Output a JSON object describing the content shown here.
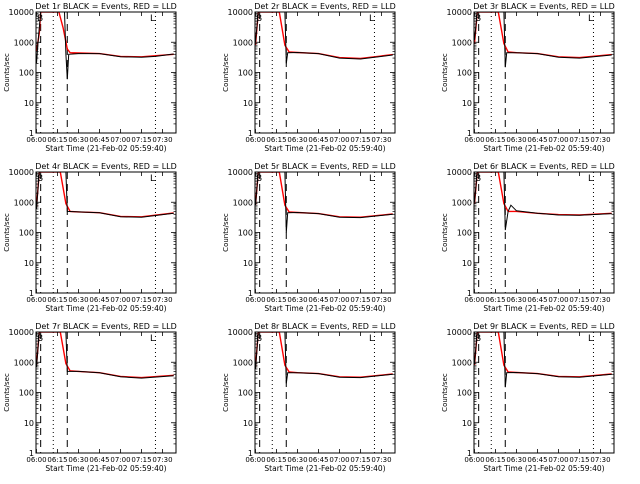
{
  "chart_data": {
    "type": "line",
    "layout": "3x3 grid of panels",
    "y_scale": "log",
    "ylim": [
      1,
      10000
    ],
    "y_ticks": [
      "1",
      "10",
      "100",
      "1000",
      "10000"
    ],
    "ylabel": "Counts/sec",
    "xlabel": "Start Time (21-Feb-02 05:59:40)",
    "x_ticks": [
      "06:00",
      "06:15",
      "06:30",
      "06:45",
      "07:00",
      "07:15",
      "07:30"
    ],
    "xlim": [
      "05:59:40",
      "07:39:40"
    ],
    "colors": {
      "events": "#000000",
      "lld": "#ff0000"
    },
    "corner_markers": {
      "left": "B",
      "right": "L"
    },
    "panels": [
      {
        "title": "Det 1r BLACK = Events, RED = LLD",
        "dashed_x": [
          "06:03",
          "06:22"
        ],
        "dotted_x": [
          "06:12",
          "07:25"
        ],
        "series": [
          {
            "name": "Events",
            "color": "#000000",
            "points": [
              [
                "06:00",
                200
              ],
              [
                "06:01",
                900
              ],
              [
                "06:03",
                10000
              ],
              [
                "06:20",
                10000
              ],
              [
                "06:21",
                400
              ],
              [
                "06:22",
                60
              ],
              [
                "06:23",
                400
              ],
              [
                "06:30",
                420
              ],
              [
                "06:45",
                420
              ],
              [
                "07:00",
                330
              ],
              [
                "07:15",
                320
              ],
              [
                "07:25",
                340
              ],
              [
                "07:38",
                410
              ]
            ]
          },
          {
            "name": "LLD",
            "color": "#ff0000",
            "points": [
              [
                "06:00",
                500
              ],
              [
                "06:02",
                2000
              ],
              [
                "06:03",
                10000
              ],
              [
                "06:16",
                10000
              ],
              [
                "06:19",
                3000
              ],
              [
                "06:22",
                600
              ],
              [
                "06:24",
                450
              ],
              [
                "06:30",
                440
              ],
              [
                "06:45",
                420
              ],
              [
                "07:00",
                340
              ],
              [
                "07:15",
                330
              ],
              [
                "07:38",
                400
              ]
            ]
          }
        ]
      },
      {
        "title": "Det 2r BLACK = Events, RED = LLD",
        "dashed_x": [
          "06:03",
          "06:22"
        ],
        "dotted_x": [
          "06:12",
          "07:25"
        ],
        "series": [
          {
            "name": "Events",
            "color": "#000000",
            "points": [
              [
                "06:00",
                1000
              ],
              [
                "06:02",
                10000
              ],
              [
                "06:21",
                10000
              ],
              [
                "06:22",
                200
              ],
              [
                "06:23",
                450
              ],
              [
                "06:30",
                460
              ],
              [
                "06:45",
                420
              ],
              [
                "07:00",
                300
              ],
              [
                "07:15",
                280
              ],
              [
                "07:38",
                380
              ]
            ]
          },
          {
            "name": "LLD",
            "color": "#ff0000",
            "points": [
              [
                "06:00",
                800
              ],
              [
                "06:02",
                10000
              ],
              [
                "06:17",
                10000
              ],
              [
                "06:21",
                800
              ],
              [
                "06:24",
                480
              ],
              [
                "06:30",
                460
              ],
              [
                "06:45",
                420
              ],
              [
                "07:00",
                310
              ],
              [
                "07:15",
                290
              ],
              [
                "07:38",
                390
              ]
            ]
          }
        ]
      },
      {
        "title": "Det 3r BLACK = Events, RED = LLD",
        "dashed_x": [
          "06:03",
          "06:22"
        ],
        "dotted_x": [
          "06:12",
          "07:25"
        ],
        "series": [
          {
            "name": "Events",
            "color": "#000000",
            "points": [
              [
                "06:00",
                1200
              ],
              [
                "06:02",
                10000
              ],
              [
                "06:21",
                10000
              ],
              [
                "06:22",
                150
              ],
              [
                "06:23",
                450
              ],
              [
                "06:30",
                450
              ],
              [
                "06:45",
                420
              ],
              [
                "07:00",
                320
              ],
              [
                "07:15",
                300
              ],
              [
                "07:38",
                380
              ]
            ]
          },
          {
            "name": "LLD",
            "color": "#ff0000",
            "points": [
              [
                "06:00",
                900
              ],
              [
                "06:02",
                10000
              ],
              [
                "06:17",
                10000
              ],
              [
                "06:21",
                900
              ],
              [
                "06:24",
                480
              ],
              [
                "06:30",
                450
              ],
              [
                "06:45",
                420
              ],
              [
                "07:00",
                330
              ],
              [
                "07:15",
                310
              ],
              [
                "07:38",
                390
              ]
            ]
          }
        ]
      },
      {
        "title": "Det 4r BLACK = Events, RED = LLD",
        "dashed_x": [
          "06:03",
          "06:22"
        ],
        "dotted_x": [
          "06:12",
          "07:25"
        ],
        "series": [
          {
            "name": "Events",
            "color": "#000000",
            "points": [
              [
                "06:00",
                600
              ],
              [
                "06:02",
                10000
              ],
              [
                "06:21",
                10000
              ],
              [
                "06:22",
                500
              ],
              [
                "06:30",
                480
              ],
              [
                "06:45",
                450
              ],
              [
                "07:00",
                330
              ],
              [
                "07:15",
                320
              ],
              [
                "07:38",
                430
              ]
            ]
          },
          {
            "name": "LLD",
            "color": "#ff0000",
            "points": [
              [
                "06:00",
                700
              ],
              [
                "06:02",
                10000
              ],
              [
                "06:17",
                10000
              ],
              [
                "06:21",
                900
              ],
              [
                "06:24",
                500
              ],
              [
                "06:30",
                480
              ],
              [
                "06:45",
                450
              ],
              [
                "07:00",
                340
              ],
              [
                "07:15",
                330
              ],
              [
                "07:38",
                440
              ]
            ]
          }
        ]
      },
      {
        "title": "Det 5r BLACK = Events, RED = LLD",
        "dashed_x": [
          "06:03",
          "06:22"
        ],
        "dotted_x": [
          "06:12",
          "07:25"
        ],
        "series": [
          {
            "name": "Events",
            "color": "#000000",
            "points": [
              [
                "06:00",
                800
              ],
              [
                "06:02",
                10000
              ],
              [
                "06:21",
                10000
              ],
              [
                "06:22",
                100
              ],
              [
                "06:23",
                450
              ],
              [
                "06:30",
                460
              ],
              [
                "06:45",
                420
              ],
              [
                "07:00",
                320
              ],
              [
                "07:15",
                310
              ],
              [
                "07:38",
                400
              ]
            ]
          },
          {
            "name": "LLD",
            "color": "#ff0000",
            "points": [
              [
                "06:00",
                800
              ],
              [
                "06:02",
                10000
              ],
              [
                "06:17",
                10000
              ],
              [
                "06:21",
                800
              ],
              [
                "06:24",
                480
              ],
              [
                "06:30",
                460
              ],
              [
                "06:45",
                420
              ],
              [
                "07:00",
                330
              ],
              [
                "07:15",
                320
              ],
              [
                "07:38",
                410
              ]
            ]
          }
        ]
      },
      {
        "title": "Det 6r BLACK = Events, RED = LLD",
        "dashed_x": [
          "06:03",
          "06:22"
        ],
        "dotted_x": [
          "06:12",
          "07:25"
        ],
        "series": [
          {
            "name": "Events",
            "color": "#000000",
            "points": [
              [
                "06:00",
                1000
              ],
              [
                "06:02",
                10000
              ],
              [
                "06:21",
                10000
              ],
              [
                "06:22",
                120
              ],
              [
                "06:24",
                500
              ],
              [
                "06:26",
                800
              ],
              [
                "06:30",
                520
              ],
              [
                "06:45",
                430
              ],
              [
                "07:00",
                380
              ],
              [
                "07:15",
                370
              ],
              [
                "07:38",
                420
              ]
            ]
          },
          {
            "name": "LLD",
            "color": "#ff0000",
            "points": [
              [
                "06:00",
                900
              ],
              [
                "06:02",
                10000
              ],
              [
                "06:17",
                10000
              ],
              [
                "06:21",
                900
              ],
              [
                "06:24",
                500
              ],
              [
                "06:30",
                500
              ],
              [
                "06:45",
                430
              ],
              [
                "07:00",
                390
              ],
              [
                "07:15",
                380
              ],
              [
                "07:38",
                430
              ]
            ]
          }
        ]
      },
      {
        "title": "Det 7r BLACK = Events, RED = LLD",
        "dashed_x": [
          "06:03",
          "06:22"
        ],
        "dotted_x": [
          "06:12",
          "07:25"
        ],
        "series": [
          {
            "name": "Events",
            "color": "#000000",
            "points": [
              [
                "06:00",
                700
              ],
              [
                "06:02",
                10000
              ],
              [
                "06:21",
                10000
              ],
              [
                "06:22",
                500
              ],
              [
                "06:30",
                500
              ],
              [
                "06:45",
                450
              ],
              [
                "07:00",
                330
              ],
              [
                "07:15",
                300
              ],
              [
                "07:38",
                360
              ]
            ]
          },
          {
            "name": "LLD",
            "color": "#ff0000",
            "points": [
              [
                "06:00",
                800
              ],
              [
                "06:02",
                10000
              ],
              [
                "06:17",
                10000
              ],
              [
                "06:21",
                900
              ],
              [
                "06:24",
                520
              ],
              [
                "06:30",
                500
              ],
              [
                "06:45",
                450
              ],
              [
                "07:00",
                340
              ],
              [
                "07:15",
                310
              ],
              [
                "07:38",
                370
              ]
            ]
          }
        ]
      },
      {
        "title": "Det 8r BLACK = Events, RED = LLD",
        "dashed_x": [
          "06:03",
          "06:22"
        ],
        "dotted_x": [
          "06:12",
          "07:25"
        ],
        "series": [
          {
            "name": "Events",
            "color": "#000000",
            "points": [
              [
                "06:00",
                600
              ],
              [
                "06:02",
                10000
              ],
              [
                "06:21",
                10000
              ],
              [
                "06:22",
                200
              ],
              [
                "06:23",
                450
              ],
              [
                "06:30",
                450
              ],
              [
                "06:45",
                420
              ],
              [
                "07:00",
                320
              ],
              [
                "07:15",
                310
              ],
              [
                "07:38",
                400
              ]
            ]
          },
          {
            "name": "LLD",
            "color": "#ff0000",
            "points": [
              [
                "06:00",
                700
              ],
              [
                "06:02",
                10000
              ],
              [
                "06:17",
                10000
              ],
              [
                "06:21",
                800
              ],
              [
                "06:24",
                480
              ],
              [
                "06:30",
                450
              ],
              [
                "06:45",
                420
              ],
              [
                "07:00",
                330
              ],
              [
                "07:15",
                320
              ],
              [
                "07:38",
                410
              ]
            ]
          }
        ]
      },
      {
        "title": "Det 9r BLACK = Events, RED = LLD",
        "dashed_x": [
          "06:03",
          "06:22"
        ],
        "dotted_x": [
          "06:12",
          "07:25"
        ],
        "series": [
          {
            "name": "Events",
            "color": "#000000",
            "points": [
              [
                "06:00",
                900
              ],
              [
                "06:02",
                10000
              ],
              [
                "06:21",
                10000
              ],
              [
                "06:22",
                150
              ],
              [
                "06:23",
                450
              ],
              [
                "06:30",
                460
              ],
              [
                "06:45",
                420
              ],
              [
                "07:00",
                330
              ],
              [
                "07:15",
                320
              ],
              [
                "07:38",
                400
              ]
            ]
          },
          {
            "name": "LLD",
            "color": "#ff0000",
            "points": [
              [
                "06:00",
                800
              ],
              [
                "06:02",
                10000
              ],
              [
                "06:17",
                10000
              ],
              [
                "06:21",
                800
              ],
              [
                "06:24",
                480
              ],
              [
                "06:30",
                460
              ],
              [
                "06:45",
                420
              ],
              [
                "07:00",
                340
              ],
              [
                "07:15",
                330
              ],
              [
                "07:38",
                410
              ]
            ]
          }
        ]
      }
    ]
  }
}
